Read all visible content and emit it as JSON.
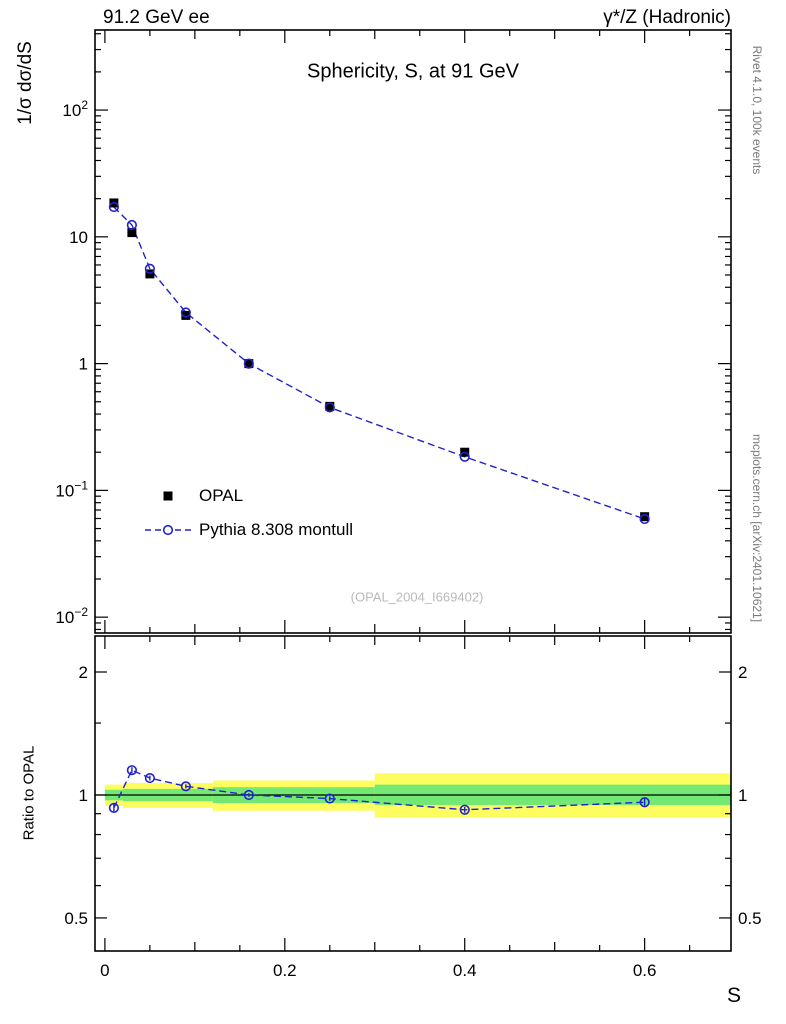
{
  "header": {
    "left": "91.2 GeV ee",
    "right": "γ*/Z (Hadronic)"
  },
  "side_credits": {
    "top": "Rivet 4.1.0, 100k events",
    "bottom": "mcplots.cern.ch [arXiv:2401.10621]"
  },
  "main_panel": {
    "title": "Sphericity, S, at 91 GeV",
    "ylabel": "1/σ  dσ/dS",
    "watermark": "(OPAL_2004_I669402)"
  },
  "ratio_panel": {
    "ylabel": "Ratio to OPAL"
  },
  "legend": [
    {
      "label": "OPAL",
      "marker": "filled-black-square"
    },
    {
      "label": "Pythia 8.308 montull",
      "marker": "blue-dashed-line-open-circle"
    }
  ],
  "colors": {
    "data": "#000000",
    "mc": "#2222cc",
    "band_outer": "#fdfd60",
    "band_inner": "#73e973",
    "reference": "#000000",
    "watermark": "#b9b9b9",
    "credits": "#7a7a7a"
  },
  "chart_data": [
    {
      "type": "scatter",
      "title": "Sphericity, S, at 91 GeV",
      "xlabel": "S",
      "ylabel": "1/σ dσ/dS",
      "xscale": "linear",
      "yscale": "log",
      "xlim": [
        -0.011,
        0.696
      ],
      "ylim": [
        0.0075,
        428
      ],
      "xticks": [
        0,
        0.2,
        0.4,
        0.6
      ],
      "xtick_labels": [
        "0",
        "0.2",
        "0.4",
        "0.6"
      ],
      "x": [
        0.01,
        0.03,
        0.05,
        0.09,
        0.16,
        0.25,
        0.4,
        0.6
      ],
      "series": [
        {
          "name": "OPAL",
          "marker": "filled-square",
          "color": "#000000",
          "values": [
            18.5,
            10.8,
            5.1,
            2.4,
            1.0,
            0.46,
            0.2,
            0.062
          ],
          "errors": [
            0.9,
            0.5,
            0.25,
            0.12,
            0.05,
            0.023,
            0.01,
            0.003
          ]
        },
        {
          "name": "Pythia 8.308 montull",
          "marker": "open-circle",
          "line": "dashed",
          "color": "#2222cc",
          "values": [
            17.2,
            12.4,
            5.6,
            2.53,
            1.0,
            0.451,
            0.184,
            0.0595
          ]
        }
      ],
      "legend_position": "left-middle",
      "grid": false
    },
    {
      "type": "line",
      "title": "",
      "xlabel": "S",
      "ylabel": "Ratio to OPAL",
      "yscale": "log",
      "ylim": [
        0.415,
        2.45
      ],
      "yticks": [
        0.5,
        1,
        2
      ],
      "ytick_labels": [
        "0.5",
        "1",
        "2"
      ],
      "yticks_minor": [
        0.6,
        0.7,
        0.8,
        0.9,
        1.5
      ],
      "x": [
        0.01,
        0.03,
        0.05,
        0.09,
        0.16,
        0.25,
        0.4,
        0.6
      ],
      "values": [
        0.93,
        1.15,
        1.1,
        1.05,
        1.0,
        0.98,
        0.92,
        0.96
      ],
      "errors": [
        0.02,
        0.02,
        0.015,
        0.012,
        0.01,
        0.012,
        0.015,
        0.02
      ],
      "reference_line": 1.0,
      "bands": [
        {
          "x0": 0.0,
          "x1": 0.02,
          "outer": [
            0.94,
            1.06
          ],
          "inner": [
            0.97,
            1.03
          ]
        },
        {
          "x0": 0.02,
          "x1": 0.12,
          "outer": [
            0.93,
            1.07
          ],
          "inner": [
            0.965,
            1.035
          ]
        },
        {
          "x0": 0.12,
          "x1": 0.3,
          "outer": [
            0.915,
            1.085
          ],
          "inner": [
            0.955,
            1.045
          ]
        },
        {
          "x0": 0.3,
          "x1": 0.7,
          "outer": [
            0.88,
            1.13
          ],
          "inner": [
            0.945,
            1.06
          ]
        }
      ]
    }
  ]
}
